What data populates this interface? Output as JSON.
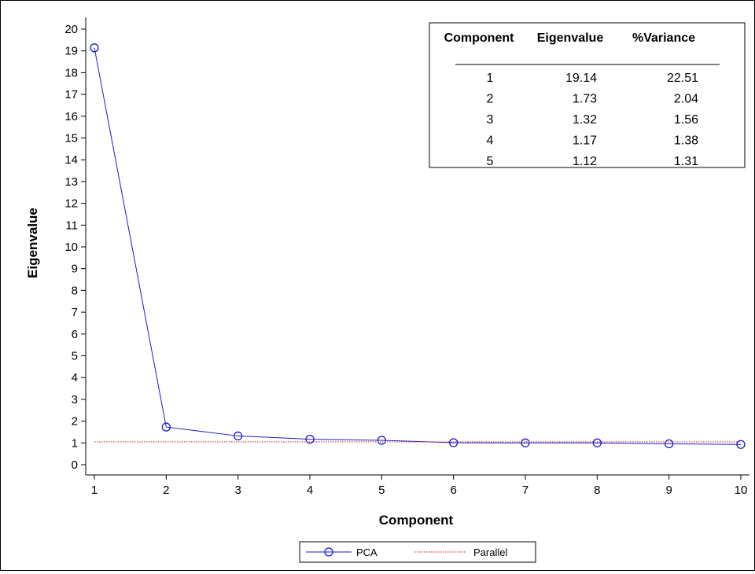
{
  "chart_data": {
    "type": "line",
    "xlabel": "Component",
    "ylabel": "Eigenvalue",
    "x": [
      1,
      2,
      3,
      4,
      5,
      6,
      7,
      8,
      9,
      10
    ],
    "xlim": [
      1,
      10
    ],
    "ylim": [
      0,
      20
    ],
    "x_ticks": [
      "1",
      "2",
      "3",
      "4",
      "5",
      "6",
      "7",
      "8",
      "9",
      "10"
    ],
    "y_ticks": [
      "0",
      "1",
      "2",
      "3",
      "4",
      "5",
      "6",
      "7",
      "8",
      "9",
      "10",
      "11",
      "12",
      "13",
      "14",
      "15",
      "16",
      "17",
      "18",
      "19",
      "20"
    ],
    "grid": false,
    "legend_position": "bottom-center",
    "series": [
      {
        "name": "PCA",
        "color": "#1a1acc",
        "marker": "circle",
        "values": [
          19.14,
          1.73,
          1.32,
          1.17,
          1.12,
          1.01,
          1.0,
          1.0,
          0.96,
          0.93
        ]
      },
      {
        "name": "Parallel",
        "color": "#d04040",
        "style": "dotted",
        "values": [
          1.05,
          1.05,
          1.05,
          1.05,
          1.05,
          1.05,
          1.05,
          1.05,
          1.05,
          1.05
        ]
      }
    ],
    "table": {
      "headers": [
        "Component",
        "Eigenvalue",
        "%Variance"
      ],
      "rows": [
        [
          "1",
          "19.14",
          "22.51"
        ],
        [
          "2",
          "1.73",
          "2.04"
        ],
        [
          "3",
          "1.32",
          "1.56"
        ],
        [
          "4",
          "1.17",
          "1.38"
        ],
        [
          "5",
          "1.12",
          "1.31"
        ]
      ]
    }
  }
}
